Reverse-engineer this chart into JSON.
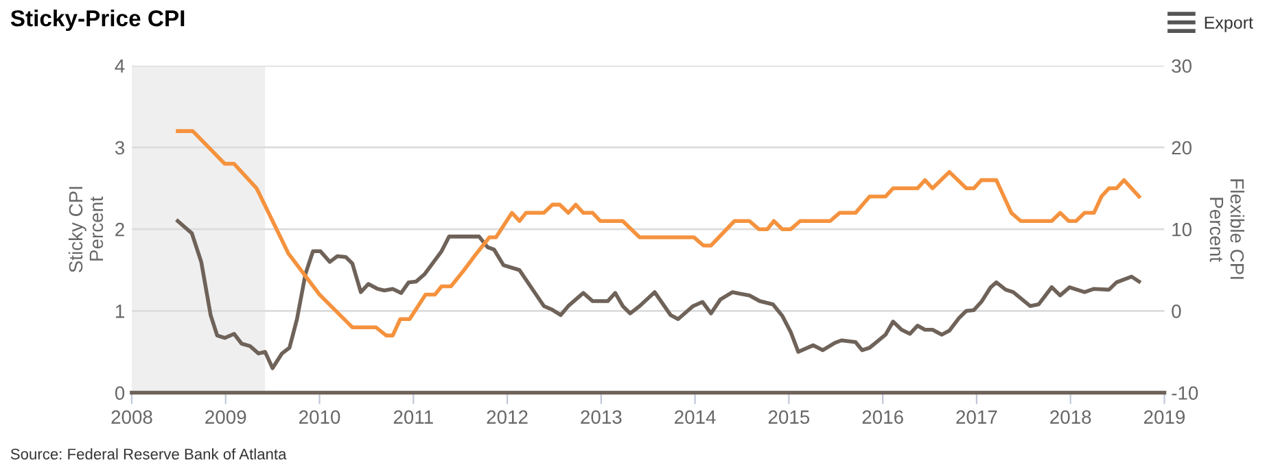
{
  "chart_data": {
    "type": "line",
    "title": "Sticky-Price CPI",
    "ylabel": "Sticky CPI\nPercent",
    "y2label": "Flexible CPI\nPercent",
    "annotations": [
      "Source: Federal Reserve Bank of Atlanta",
      "Export"
    ],
    "xlim": [
      2008,
      2019
    ],
    "xticks": [
      2008,
      2009,
      2010,
      2011,
      2012,
      2013,
      2014,
      2015,
      2016,
      2017,
      2018,
      2019
    ],
    "ylim": [
      0,
      4
    ],
    "yticks": [
      0,
      1,
      2,
      3,
      4
    ],
    "y2lim": [
      -10,
      30
    ],
    "y2ticks": [
      -10,
      0,
      10,
      20,
      30
    ],
    "grid": "y",
    "legend": false,
    "marker": "none",
    "line_style": "solid",
    "bands": [
      {
        "axis": "x",
        "from": 2008,
        "to": 2009.42,
        "color": "#efefef"
      }
    ],
    "series": [
      {
        "color": "#f5923e",
        "x": [
          2008.49,
          2008.65,
          2008.99,
          2009.09,
          2009.33,
          2009.67,
          2010.0,
          2010.35,
          2010.6,
          2010.71,
          2010.78,
          2010.86,
          2010.96,
          2011.13,
          2011.23,
          2011.3,
          2011.4,
          2011.54,
          2011.67,
          2011.81,
          2011.88,
          2012.05,
          2012.13,
          2012.2,
          2012.39,
          2012.48,
          2012.56,
          2012.65,
          2012.73,
          2012.81,
          2012.91,
          2012.99,
          2013.23,
          2013.41,
          2013.99,
          2014.09,
          2014.17,
          2014.42,
          2014.58,
          2014.68,
          2014.77,
          2014.84,
          2014.93,
          2015.02,
          2015.12,
          2015.44,
          2015.54,
          2015.71,
          2015.86,
          2016.03,
          2016.11,
          2016.37,
          2016.45,
          2016.53,
          2016.71,
          2016.89,
          2016.97,
          2017.05,
          2017.21,
          2017.37,
          2017.47,
          2017.8,
          2017.89,
          2017.98,
          2018.06,
          2018.15,
          2018.25,
          2018.33,
          2018.41,
          2018.49,
          2018.57,
          2018.73
        ],
        "values": [
          3.2,
          3.2,
          2.8,
          2.8,
          2.5,
          1.7,
          1.2,
          0.8,
          0.8,
          0.7,
          0.7,
          0.9,
          0.9,
          1.2,
          1.2,
          1.3,
          1.3,
          1.5,
          1.7,
          1.9,
          1.9,
          2.2,
          2.1,
          2.2,
          2.2,
          2.3,
          2.3,
          2.2,
          2.3,
          2.2,
          2.2,
          2.1,
          2.1,
          1.9,
          1.9,
          1.8,
          1.8,
          2.1,
          2.1,
          2.0,
          2.0,
          2.1,
          2.0,
          2.0,
          2.1,
          2.1,
          2.2,
          2.2,
          2.4,
          2.4,
          2.5,
          2.5,
          2.6,
          2.5,
          2.7,
          2.5,
          2.5,
          2.6,
          2.6,
          2.2,
          2.1,
          2.1,
          2.2,
          2.1,
          2.1,
          2.2,
          2.2,
          2.4,
          2.5,
          2.5,
          2.6,
          2.4
        ]
      },
      {
        "color": "#6e6259",
        "axis": "y2",
        "x": [
          2008.49,
          2008.64,
          2008.74,
          2008.84,
          2008.91,
          2008.99,
          2009.09,
          2009.17,
          2009.26,
          2009.35,
          2009.42,
          2009.5,
          2009.6,
          2009.68,
          2009.76,
          2009.85,
          2009.93,
          2010.01,
          2010.11,
          2010.19,
          2010.28,
          2010.35,
          2010.44,
          2010.52,
          2010.62,
          2010.69,
          2010.78,
          2010.87,
          2010.95,
          2011.03,
          2011.12,
          2011.3,
          2011.38,
          2011.54,
          2011.7,
          2011.79,
          2011.86,
          2011.96,
          2012.13,
          2012.39,
          2012.47,
          2012.57,
          2012.65,
          2012.81,
          2012.91,
          2013.07,
          2013.15,
          2013.23,
          2013.31,
          2013.41,
          2013.57,
          2013.74,
          2013.82,
          2013.98,
          2014.08,
          2014.17,
          2014.27,
          2014.4,
          2014.48,
          2014.58,
          2014.69,
          2014.83,
          2014.93,
          2015.02,
          2015.1,
          2015.26,
          2015.36,
          2015.49,
          2015.56,
          2015.71,
          2015.78,
          2015.86,
          2016.03,
          2016.11,
          2016.2,
          2016.29,
          2016.37,
          2016.45,
          2016.53,
          2016.63,
          2016.71,
          2016.81,
          2016.89,
          2016.97,
          2017.05,
          2017.15,
          2017.21,
          2017.31,
          2017.39,
          2017.57,
          2017.66,
          2017.8,
          2017.89,
          2017.99,
          2018.15,
          2018.25,
          2018.41,
          2018.49,
          2018.65,
          2018.73
        ],
        "values": [
          11,
          9.5,
          6,
          -0.5,
          -3,
          -3.3,
          -2.8,
          -4,
          -4.3,
          -5.2,
          -5,
          -7,
          -5.2,
          -4.5,
          -1,
          4.5,
          7.3,
          7.3,
          6,
          6.7,
          6.6,
          5.8,
          2.3,
          3.3,
          2.7,
          2.5,
          2.7,
          2.2,
          3.5,
          3.6,
          4.5,
          7.3,
          9.1,
          9.1,
          9.1,
          7.8,
          7.5,
          5.6,
          5,
          0.6,
          0.2,
          -0.5,
          0.6,
          2.2,
          1.2,
          1.2,
          2.2,
          0.6,
          -0.3,
          0.6,
          2.3,
          -0.5,
          -1,
          0.6,
          1.1,
          -0.3,
          1.4,
          2.3,
          2.1,
          1.9,
          1.2,
          0.8,
          -0.6,
          -2.6,
          -5,
          -4.2,
          -4.8,
          -3.9,
          -3.6,
          -3.8,
          -4.8,
          -4.5,
          -2.9,
          -1.3,
          -2.3,
          -2.8,
          -1.8,
          -2.3,
          -2.3,
          -2.9,
          -2.4,
          -0.9,
          0,
          0.1,
          1.1,
          2.9,
          3.5,
          2.6,
          2.3,
          0.6,
          0.8,
          2.9,
          1.9,
          2.9,
          2.3,
          2.7,
          2.6,
          3.5,
          4.2,
          3.6
        ]
      }
    ]
  }
}
